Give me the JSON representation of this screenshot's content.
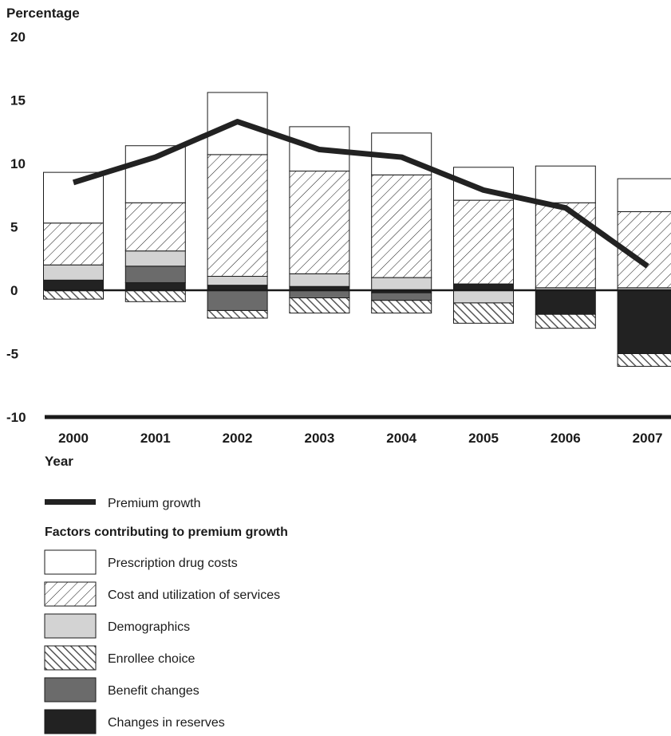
{
  "chart_data": {
    "type": "bar",
    "ylabel": "Percentage",
    "xlabel": "Year",
    "ylim": [
      -10,
      20
    ],
    "yticks": [
      20,
      15,
      10,
      5,
      0,
      -5,
      -10
    ],
    "categories": [
      "2000",
      "2001",
      "2002",
      "2003",
      "2004",
      "2005",
      "2006",
      "2007"
    ],
    "stacked": true,
    "series": [
      {
        "name": "Changes in reserves",
        "fill": "solid-dark",
        "values": [
          0.8,
          0.6,
          0.4,
          0.3,
          -0.2,
          0.5,
          -1.9,
          -5.0
        ]
      },
      {
        "name": "Benefit changes",
        "fill": "solid-mid",
        "values": [
          0,
          1.3,
          -1.6,
          -0.6,
          -0.6,
          0,
          0,
          0
        ]
      },
      {
        "name": "Demographics",
        "fill": "solid-light",
        "values": [
          1.2,
          1.2,
          0.7,
          1.0,
          1.0,
          -1.0,
          0.2,
          0.2
        ]
      },
      {
        "name": "Enrollee choice",
        "fill": "hatch-dense",
        "values": [
          -0.7,
          -0.9,
          -0.6,
          -1.2,
          -1.0,
          -1.6,
          -1.1,
          -1.0
        ]
      },
      {
        "name": "Cost and utilization of services",
        "fill": "hatch",
        "values": [
          3.3,
          3.8,
          9.6,
          8.1,
          8.1,
          6.6,
          6.7,
          6.0
        ]
      },
      {
        "name": "Prescription drug costs",
        "fill": "white",
        "values": [
          4.0,
          4.5,
          4.9,
          3.5,
          3.3,
          2.6,
          2.9,
          2.6
        ]
      }
    ],
    "line": {
      "name": "Premium growth",
      "values": [
        8.5,
        10.5,
        13.3,
        11.1,
        10.5,
        7.9,
        6.5,
        1.9
      ]
    },
    "legend_placement": "bottom",
    "legend_group_title": "Factors contributing to premium growth",
    "legend_order": [
      "Prescription drug costs",
      "Cost and utilization of services",
      "Demographics",
      "Enrollee choice",
      "Benefit changes",
      "Changes in reserves"
    ],
    "grid": false,
    "colors": {
      "solid-dark": "#222222",
      "solid-mid": "#6b6b6b",
      "solid-light": "#d3d3d3",
      "white": "#ffffff",
      "stroke": "#1a1a1a"
    }
  }
}
